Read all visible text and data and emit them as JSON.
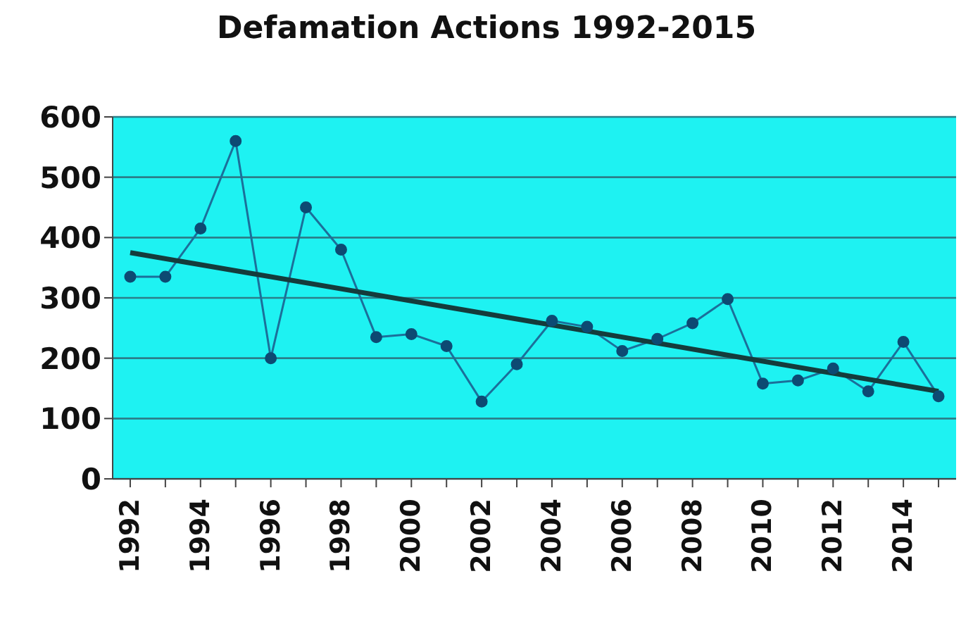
{
  "chart_data": {
    "type": "line",
    "title": "Defamation Actions 1992-2015",
    "x": [
      1992,
      1993,
      1994,
      1995,
      1996,
      1997,
      1998,
      1999,
      2000,
      2001,
      2002,
      2003,
      2004,
      2005,
      2006,
      2007,
      2008,
      2009,
      2010,
      2011,
      2012,
      2013,
      2014,
      2015
    ],
    "series": [
      {
        "color": "#1b6f9a",
        "values": [
          335,
          335,
          415,
          560,
          200,
          450,
          380,
          235,
          240,
          220,
          128,
          190,
          262,
          252,
          212,
          232,
          258,
          298,
          158,
          163,
          183,
          145,
          227,
          137
        ],
        "marker": "circle"
      },
      {
        "type": "line",
        "color": "#143c3c",
        "x": [
          1992,
          2015
        ],
        "values": [
          375,
          145
        ],
        "marker": "none"
      }
    ],
    "xlim": [
      1991.5,
      2015.5
    ],
    "xticks": [
      1992,
      {
        "value": 1993,
        "label": null
      },
      1994,
      {
        "value": 1995,
        "label": null
      },
      1996,
      {
        "value": 1997,
        "label": null
      },
      1998,
      {
        "value": 1999,
        "label": null
      },
      2000,
      {
        "value": 2001,
        "label": null
      },
      2002,
      {
        "value": 2003,
        "label": null
      },
      2004,
      {
        "value": 2005,
        "label": null
      },
      2006,
      {
        "value": 2007,
        "label": null
      },
      2008,
      {
        "value": 2009,
        "label": null
      },
      2010,
      {
        "value": 2011,
        "label": null
      },
      2012,
      {
        "value": 2013,
        "label": null
      },
      2014,
      {
        "value": 2015,
        "label": null
      }
    ],
    "ylim": [
      0,
      600
    ],
    "yticks": [
      0,
      100,
      200,
      300,
      400,
      500,
      600
    ],
    "grid": "y"
  }
}
